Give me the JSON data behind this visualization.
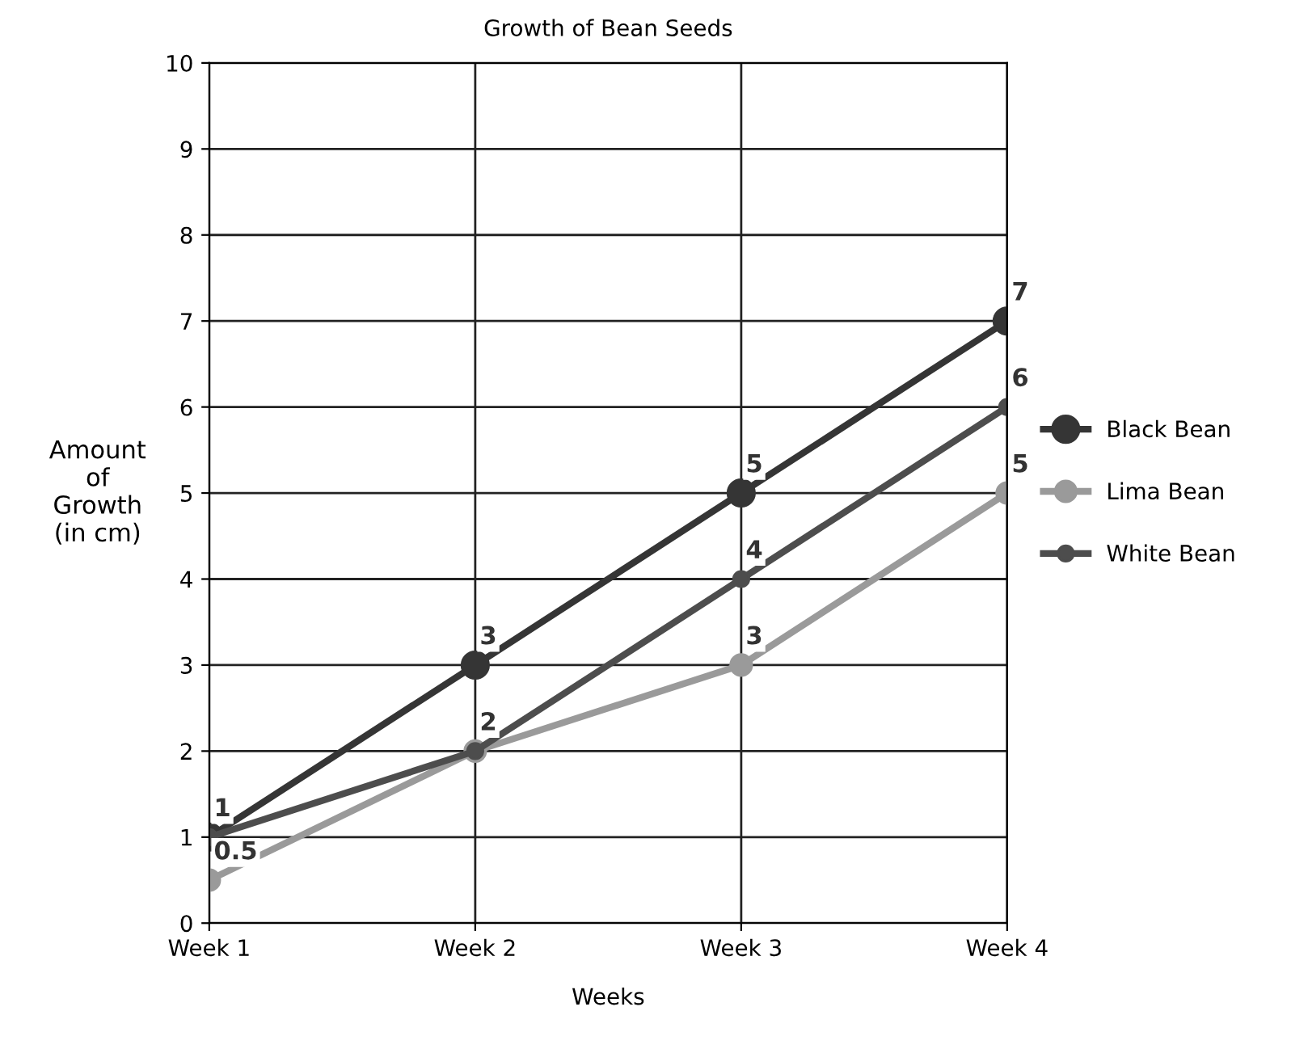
{
  "chart_data": {
    "type": "line",
    "title": "Growth of Bean Seeds",
    "xlabel": "Weeks",
    "ylabel": "Amount\nof\nGrowth\n(in cm)",
    "categories": [
      "Week 1",
      "Week 2",
      "Week 3",
      "Week 4"
    ],
    "series": [
      {
        "name": "Black Bean",
        "color": "#353535",
        "values": [
          1,
          3,
          5,
          7
        ],
        "value_labels": [
          "1",
          "3",
          "5",
          "7"
        ]
      },
      {
        "name": "Lima Bean",
        "color": "#9a9a9a",
        "values": [
          0.5,
          2,
          3,
          5
        ],
        "value_labels": [
          "0.5",
          null,
          "3",
          "5"
        ]
      },
      {
        "name": "White Bean",
        "color": "#4d4d4d",
        "values": [
          1,
          2,
          4,
          6
        ],
        "value_labels": [
          null,
          "2",
          "4",
          "6"
        ]
      }
    ],
    "ylim": [
      0,
      10
    ],
    "yticks": [
      0,
      1,
      2,
      3,
      4,
      5,
      6,
      7,
      8,
      9,
      10
    ],
    "grid": true,
    "legend": "right",
    "marker": "circle",
    "line_style": "solid"
  }
}
